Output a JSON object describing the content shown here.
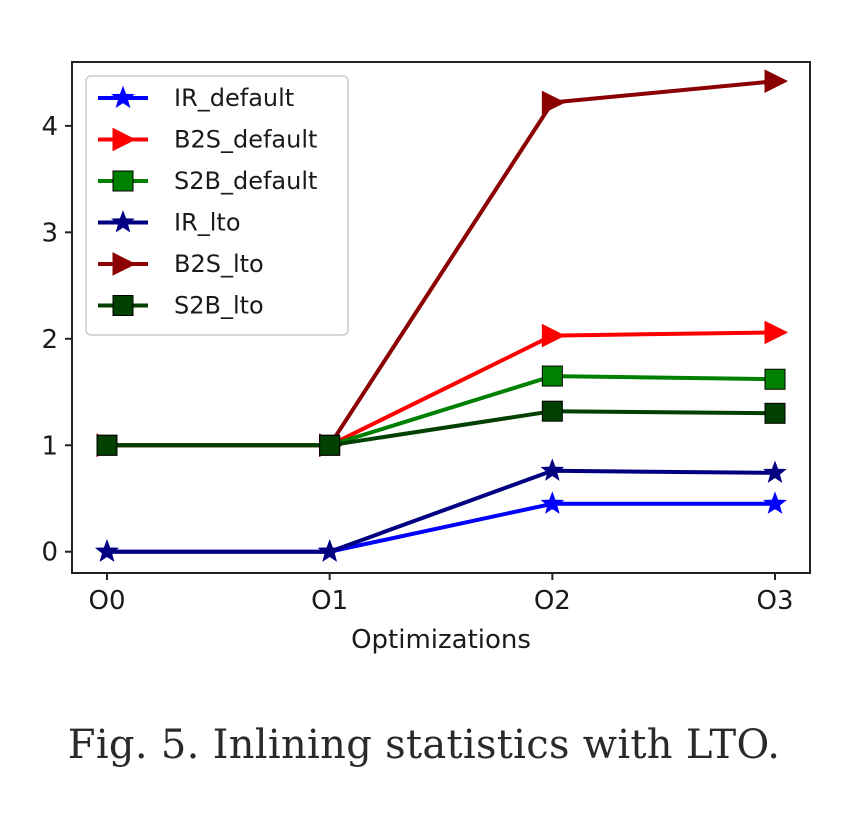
{
  "caption": "Fig. 5.  Inlining statistics with LTO.",
  "chart_data": {
    "type": "line",
    "title": "",
    "xlabel": "Optimizations",
    "ylabel": "",
    "categories": [
      "O0",
      "O1",
      "O2",
      "O3"
    ],
    "ylim": [
      -0.2,
      4.6
    ],
    "yticks": [
      0,
      1,
      2,
      3,
      4
    ],
    "grid": false,
    "legend_position": "top-left",
    "series": [
      {
        "name": "IR_default",
        "values": [
          0,
          0,
          0.45,
          0.45
        ],
        "color": "#0000ff",
        "marker": "star"
      },
      {
        "name": "B2S_default",
        "values": [
          1,
          1,
          2.03,
          2.06
        ],
        "color": "#ff0000",
        "marker": "triangle-right"
      },
      {
        "name": "S2B_default",
        "values": [
          1,
          1,
          1.65,
          1.62
        ],
        "color": "#008000",
        "marker": "square"
      },
      {
        "name": "IR_lto",
        "values": [
          0,
          0,
          0.76,
          0.74
        ],
        "color": "#000080",
        "marker": "star"
      },
      {
        "name": "B2S_lto",
        "values": [
          1,
          1,
          4.22,
          4.42
        ],
        "color": "#8b0000",
        "marker": "triangle-right"
      },
      {
        "name": "S2B_lto",
        "values": [
          1,
          1,
          1.32,
          1.3
        ],
        "color": "#004000",
        "marker": "square"
      }
    ]
  }
}
